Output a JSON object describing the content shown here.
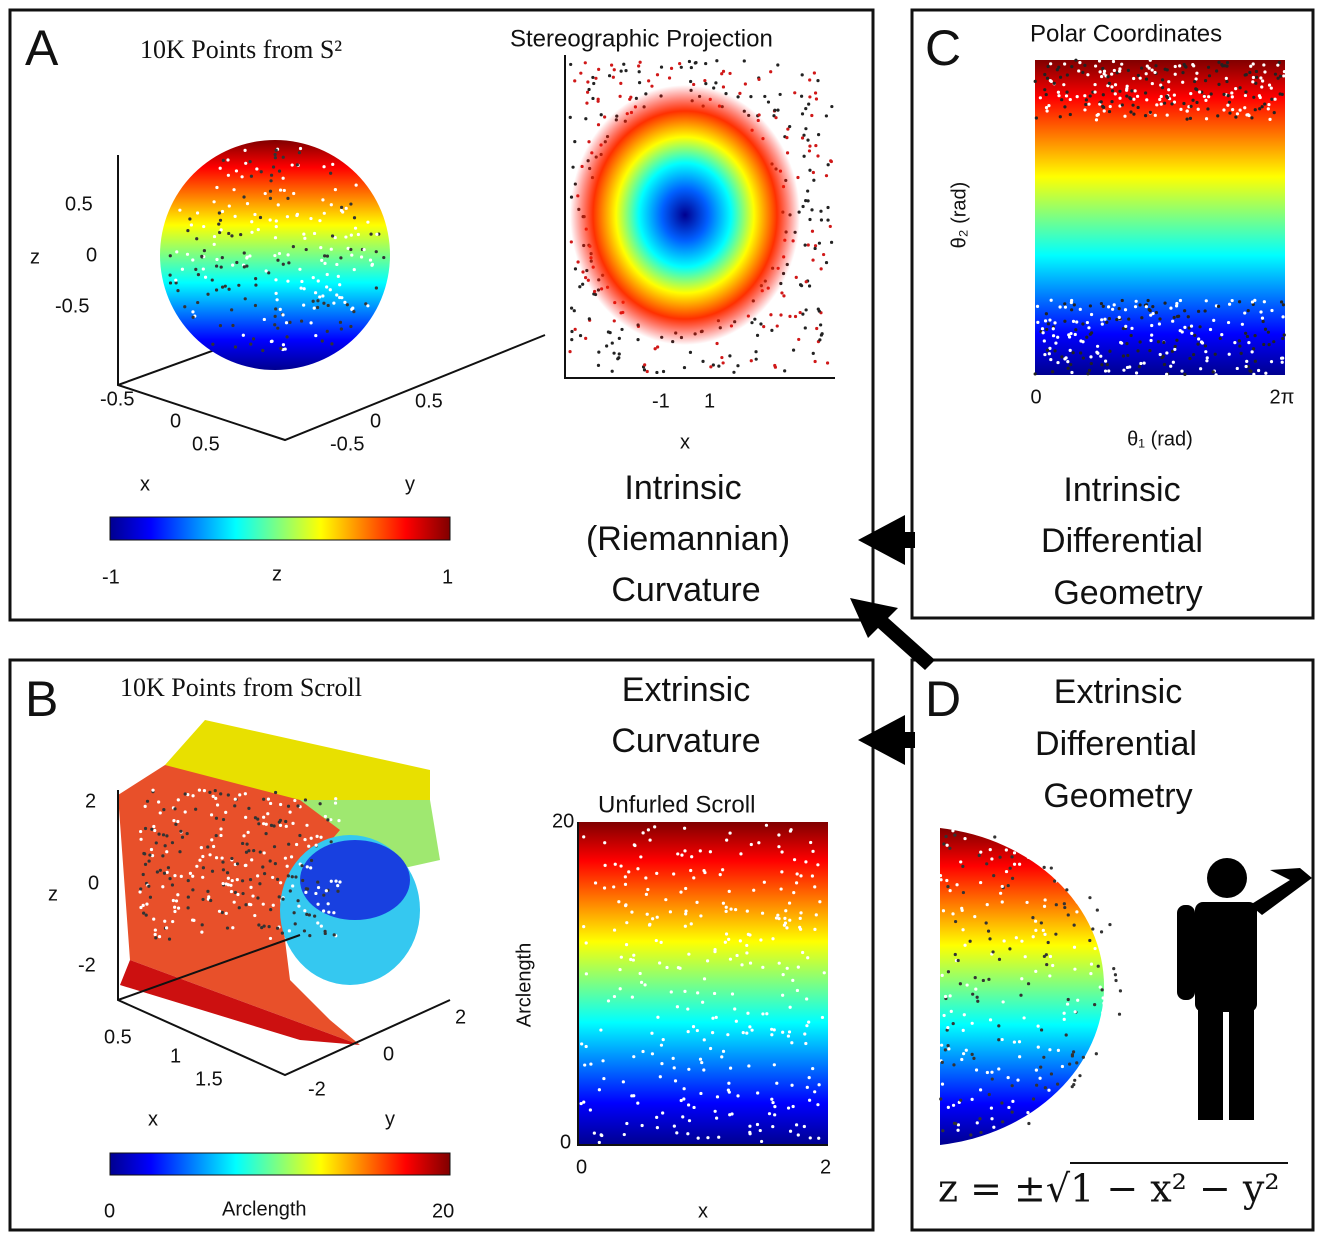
{
  "panel_a": {
    "letter": "A",
    "title": "10K Points from S²",
    "z_ticks": [
      "0.5",
      "0",
      "-0.5"
    ],
    "x_ticks": [
      "-0.5",
      "0",
      "0.5"
    ],
    "y_ticks": [
      "-0.5",
      "0",
      "0.5"
    ],
    "axis_labels": [
      "z",
      "x",
      "y"
    ],
    "colorbar": [
      "-1",
      "z",
      "1"
    ],
    "projection_title": "Stereographic Projection",
    "projection_x_ticks": [
      "-1",
      "1"
    ],
    "projection_x_label": "x",
    "caption": [
      "Intrinsic",
      "(Riemannian)",
      "Curvature"
    ]
  },
  "panel_c": {
    "letter": "C",
    "title": "Polar Coordinates",
    "y_label": "θ₂ (rad)",
    "x_ticks": [
      "0",
      "2π"
    ],
    "x_label": "θ₁ (rad)",
    "caption": [
      "Intrinsic",
      "Differential",
      "Geometry"
    ]
  },
  "panel_b": {
    "letter": "B",
    "title": "10K Points from Scroll",
    "z_ticks": [
      "2",
      "0",
      "-2"
    ],
    "x_ticks": [
      "0.5",
      "1",
      "1.5"
    ],
    "y_ticks": [
      "-2",
      "0",
      "2"
    ],
    "axis_labels": [
      "z",
      "x",
      "y"
    ],
    "colorbar": [
      "0",
      "Arclength",
      "20"
    ],
    "caption": [
      "Extrinsic",
      "Curvature"
    ],
    "unfurled_title": "Unfurled Scroll",
    "unfurled_y_ticks": [
      "20",
      "0"
    ],
    "unfurled_x_ticks": [
      "0",
      "2"
    ],
    "unfurled_y_label": "Arclength",
    "unfurled_x_label": "x"
  },
  "panel_d": {
    "letter": "D",
    "caption": [
      "Extrinsic",
      "Differential",
      "Geometry"
    ],
    "formula": "z = ±√1 − x² − y²"
  }
}
